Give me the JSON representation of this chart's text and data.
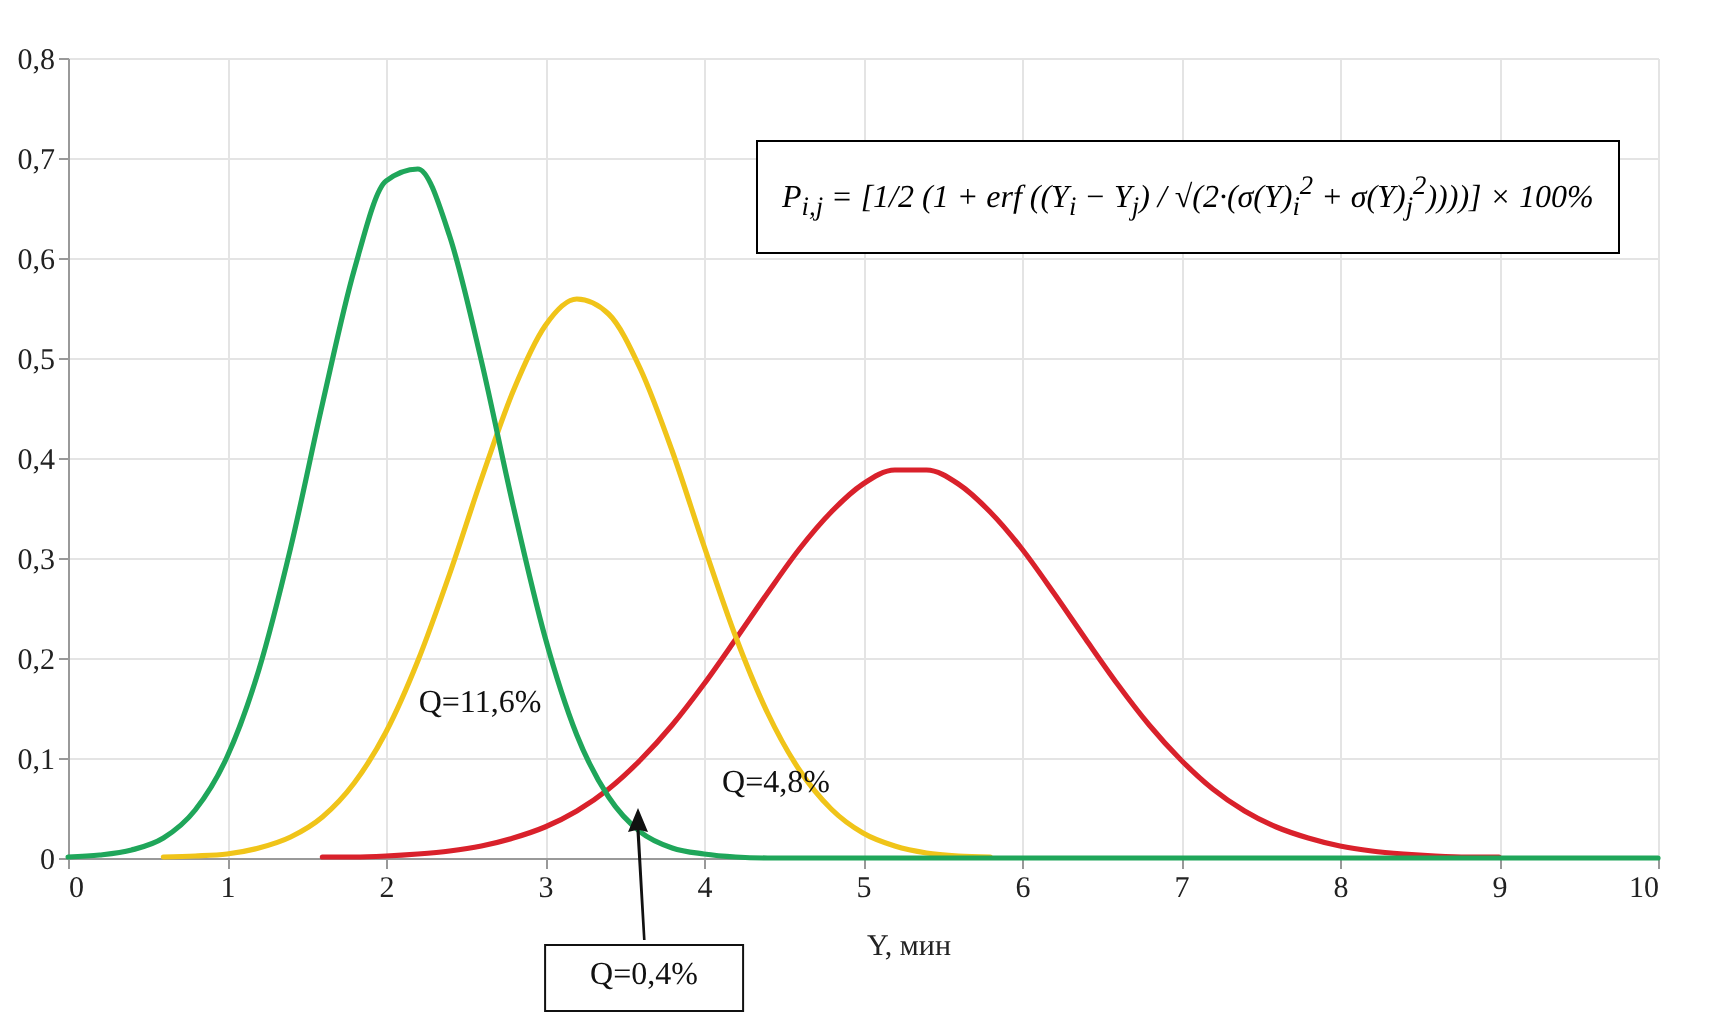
{
  "chart_data": {
    "type": "line",
    "xlabel": "Y, мин",
    "x": [
      0,
      0.2,
      0.4,
      0.6,
      0.8,
      1,
      1.2,
      1.4,
      1.6,
      1.8,
      2,
      2.2,
      2.4,
      2.6,
      2.8,
      3,
      3.2,
      3.4,
      3.6,
      3.8,
      4,
      4.2,
      4.4,
      4.6,
      4.8,
      5,
      5.2,
      5.4,
      5.6,
      5.8,
      6,
      6.2,
      6.4,
      6.6,
      6.8,
      7,
      7.2,
      7.4,
      7.6,
      7.8,
      8,
      8.2,
      8.4,
      8.6,
      8.8,
      9,
      9.2,
      9.4,
      9.6,
      9.8,
      10
    ],
    "series": [
      {
        "color": "#1fa65a",
        "values": [
          0.001,
          0.003,
          0.008,
          0.02,
          0.048,
          0.101,
          0.188,
          0.31,
          0.454,
          0.588,
          0.677,
          0.689,
          0.622,
          0.497,
          0.352,
          0.221,
          0.123,
          0.061,
          0.026,
          0.01,
          0.004,
          0.001,
          0,
          0,
          0,
          0,
          0,
          0,
          0,
          0,
          0,
          0,
          0,
          0,
          0,
          0,
          0,
          0,
          0,
          0,
          0,
          0,
          0,
          0,
          0,
          0,
          0,
          0,
          0,
          0,
          0
        ]
      },
      {
        "color": "#f0c419",
        "values": [
          null,
          null,
          null,
          0.001,
          0.002,
          0.004,
          0.01,
          0.021,
          0.041,
          0.075,
          0.126,
          0.197,
          0.284,
          0.379,
          0.467,
          0.532,
          0.559,
          0.544,
          0.489,
          0.407,
          0.312,
          0.221,
          0.145,
          0.088,
          0.049,
          0.025,
          0.012,
          0.005,
          0.002,
          0.001,
          null,
          null,
          null,
          null,
          null,
          null,
          null,
          null,
          null,
          null,
          null,
          null,
          null,
          null,
          null,
          null,
          null,
          null,
          null,
          null,
          null
        ]
      },
      {
        "color": "#d9212b",
        "values": [
          null,
          null,
          null,
          null,
          null,
          null,
          null,
          null,
          0.001,
          0.001,
          0.002,
          0.004,
          0.007,
          0.012,
          0.02,
          0.031,
          0.047,
          0.069,
          0.098,
          0.133,
          0.174,
          0.219,
          0.265,
          0.309,
          0.346,
          0.374,
          0.388,
          0.388,
          0.374,
          0.346,
          0.309,
          0.265,
          0.219,
          0.174,
          0.133,
          0.098,
          0.069,
          0.047,
          0.031,
          0.02,
          0.012,
          0.007,
          0.004,
          0.002,
          0.001,
          0.001,
          null,
          null,
          null,
          null,
          null
        ]
      }
    ],
    "xlim": [
      0,
      10
    ],
    "xticks": [
      0,
      1,
      2,
      3,
      4,
      5,
      6,
      7,
      8,
      9,
      10
    ],
    "ylim": [
      0,
      0.8
    ],
    "yticks": [
      0,
      {
        "value": 0.1,
        "label": "0,1"
      },
      {
        "value": 0.2,
        "label": "0,2"
      },
      {
        "value": 0.3,
        "label": "0,3"
      },
      {
        "value": 0.4,
        "label": "0,4"
      },
      {
        "value": 0.5,
        "label": "0,5"
      },
      {
        "value": 0.6,
        "label": "0,6"
      },
      {
        "value": 0.7,
        "label": "0,7"
      },
      {
        "value": 0.8,
        "label": "0,8"
      }
    ],
    "grid": true,
    "annotations": [
      "P$_{i,j}$ = [1/2 (1 + erf ((Y$_{i}$ − Y$_{j}$) / √(2·(σ(Y)$_{i}$$^{2}$ + σ(Y)$_{j}$$^{2}$))))] × 100%",
      "Q=11,6%",
      "Q=4,8%",
      "Q=0,4%"
    ]
  }
}
